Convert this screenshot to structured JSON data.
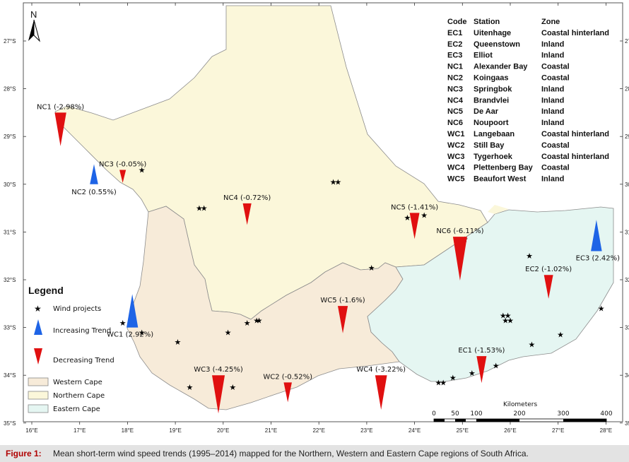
{
  "north_arrow": {
    "label": "N"
  },
  "lat_ticks": [
    "27°S",
    "28°S",
    "29°S",
    "30°S",
    "31°S",
    "32°S",
    "33°S",
    "34°S",
    "35°S"
  ],
  "lon_ticks": [
    "16°E",
    "17°E",
    "18°E",
    "19°E",
    "20°E",
    "21°E",
    "22°E",
    "23°E",
    "24°E",
    "25°E",
    "26°E",
    "27°E",
    "28°E"
  ],
  "table": {
    "headers": [
      "Code",
      "Station",
      "Zone"
    ],
    "rows": [
      [
        "EC1",
        "Uitenhage",
        "Coastal hinterland"
      ],
      [
        "EC2",
        "Queenstown",
        "Inland"
      ],
      [
        "EC3",
        "Elliot",
        "Inland"
      ],
      [
        "NC1",
        "Alexander Bay",
        "Coastal"
      ],
      [
        "NC2",
        "Koingaas",
        "Coastal"
      ],
      [
        "NC3",
        "Springbok",
        "Inland"
      ],
      [
        "NC4",
        "Brandvlei",
        "Inland"
      ],
      [
        "NC5",
        "De Aar",
        "Inland"
      ],
      [
        "NC6",
        "Noupoort",
        "Inland"
      ],
      [
        "WC1",
        "Langebaan",
        "Coastal hinterland"
      ],
      [
        "WC2",
        "Still Bay",
        "Coastal"
      ],
      [
        "WC3",
        "Tygerhoek",
        "Coastal hinterland"
      ],
      [
        "WC4",
        "Plettenberg Bay",
        "Coastal"
      ],
      [
        "WC5",
        "Beaufort West",
        "Inland"
      ]
    ]
  },
  "stations": [
    {
      "code": "NC1",
      "label": "NC1 (-2.98%)",
      "lon": 16.6,
      "lat": 28.5,
      "trend": -2.98
    },
    {
      "code": "NC2",
      "label": "NC2 (0.55%)",
      "lon": 17.3,
      "lat": 30.0,
      "trend": 0.55
    },
    {
      "code": "NC3",
      "label": "NC3 (-0.05%)",
      "lon": 17.9,
      "lat": 29.7,
      "trend": -0.05
    },
    {
      "code": "NC4",
      "label": "NC4 (-0.72%)",
      "lon": 20.5,
      "lat": 30.4,
      "trend": -0.72
    },
    {
      "code": "NC5",
      "label": "NC5 (-1.41%)",
      "lon": 24.0,
      "lat": 30.6,
      "trend": -1.41
    },
    {
      "code": "NC6",
      "label": "NC6 (-6.11%)",
      "lon": 24.95,
      "lat": 31.1,
      "trend": -6.11
    },
    {
      "code": "EC1",
      "label": "EC1 (-1.53%)",
      "lon": 25.4,
      "lat": 33.6,
      "trend": -1.53
    },
    {
      "code": "EC2",
      "label": "EC2 (-1.02%)",
      "lon": 26.8,
      "lat": 31.9,
      "trend": -1.02
    },
    {
      "code": "EC3",
      "label": "EC3 (2.42%)",
      "lon": 27.8,
      "lat": 31.4,
      "trend": 2.42
    },
    {
      "code": "WC1",
      "label": "WC1 (2.92%)",
      "lon": 18.1,
      "lat": 33.0,
      "trend": 2.92
    },
    {
      "code": "WC2",
      "label": "WC2 (-0.52%)",
      "lon": 21.35,
      "lat": 34.15,
      "trend": -0.52
    },
    {
      "code": "WC3",
      "label": "WC3 (-4.25%)",
      "lon": 19.9,
      "lat": 34.0,
      "trend": -4.25
    },
    {
      "code": "WC4",
      "label": "WC4 (-3.22%)",
      "lon": 23.3,
      "lat": 34.0,
      "trend": -3.22
    },
    {
      "code": "WC5",
      "label": "WC5 (-1.6%)",
      "lon": 22.5,
      "lat": 32.55,
      "trend": -1.6
    }
  ],
  "wind_projects": [
    [
      18.3,
      29.7
    ],
    [
      19.5,
      30.5
    ],
    [
      19.6,
      30.5
    ],
    [
      22.3,
      29.95
    ],
    [
      22.4,
      29.95
    ],
    [
      23.85,
      30.7
    ],
    [
      24.2,
      30.65
    ],
    [
      25.05,
      31.15
    ],
    [
      23.1,
      31.75
    ],
    [
      26.4,
      31.5
    ],
    [
      20.5,
      32.9
    ],
    [
      20.7,
      32.85
    ],
    [
      20.75,
      32.85
    ],
    [
      20.1,
      33.1
    ],
    [
      19.05,
      33.3
    ],
    [
      17.9,
      32.9
    ],
    [
      18.3,
      33.1
    ],
    [
      19.3,
      34.25
    ],
    [
      20.2,
      34.25
    ],
    [
      24.5,
      34.15
    ],
    [
      24.6,
      34.15
    ],
    [
      24.8,
      34.05
    ],
    [
      25.2,
      33.95
    ],
    [
      25.7,
      33.8
    ],
    [
      25.85,
      32.75
    ],
    [
      25.95,
      32.75
    ],
    [
      25.9,
      32.85
    ],
    [
      26.0,
      32.85
    ],
    [
      26.45,
      33.35
    ],
    [
      27.05,
      33.15
    ],
    [
      27.9,
      32.6
    ]
  ],
  "legend": {
    "title": "Legend",
    "wind_projects": "Wind projects",
    "increasing": "Increasing Trend",
    "decreasing": "Decreasing Trend",
    "western_cape": "Western Cape",
    "northern_cape": "Northern Cape",
    "eastern_cape": "Eastern Cape"
  },
  "scale_bar": {
    "title": "Kilometers",
    "labels": [
      "0",
      "50",
      "100",
      "200",
      "300",
      "400"
    ]
  },
  "colors": {
    "northern_cape": "#fbf7da",
    "western_cape": "#f7ebd9",
    "eastern_cape": "#e5f6f2",
    "increasing": "#1e64e6",
    "decreasing": "#e01010",
    "border": "#8c8c8c"
  },
  "caption": {
    "label": "Figure 1:",
    "text": "Mean short-term wind speed trends (1995–2014) mapped for the Northern, Western and Eastern Cape regions of South Africa."
  }
}
